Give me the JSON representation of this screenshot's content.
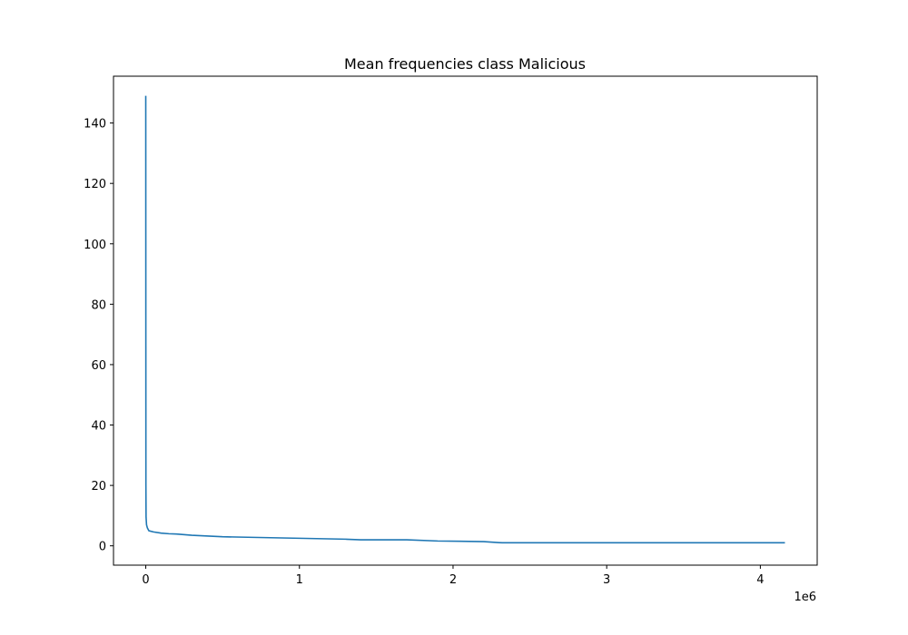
{
  "chart_data": {
    "type": "line",
    "title": "Mean frequencies class Malicious",
    "xlabel": "",
    "ylabel": "",
    "x_offset_text": "1e6",
    "xlim": [
      -0.21,
      4.37
    ],
    "ylim": [
      -6.4,
      155.5
    ],
    "x_ticks": [
      0,
      1,
      2,
      3,
      4
    ],
    "x_tick_labels": [
      "0",
      "1",
      "2",
      "3",
      "4"
    ],
    "y_ticks": [
      0,
      20,
      40,
      60,
      80,
      100,
      120,
      140
    ],
    "y_tick_labels": [
      "0",
      "20",
      "40",
      "60",
      "80",
      "100",
      "120",
      "140"
    ],
    "grid": false,
    "line_color": "#1f77b4",
    "series": [
      {
        "x": [
          0,
          0.0005,
          0.001,
          0.002,
          0.005,
          0.01,
          0.02,
          0.05,
          0.1,
          0.15,
          0.2,
          0.3,
          0.5,
          0.7,
          1.0,
          1.3,
          1.4,
          1.7,
          1.9,
          2.2,
          2.3,
          2.32,
          3.0,
          4.0,
          4.16
        ],
        "y": [
          149,
          70,
          20,
          9.5,
          7,
          6,
          5,
          4.6,
          4.2,
          4.0,
          3.9,
          3.5,
          3.0,
          2.8,
          2.5,
          2.2,
          2.0,
          2.0,
          1.6,
          1.4,
          1.05,
          1.0,
          1.0,
          1.0,
          1.0
        ]
      }
    ]
  }
}
